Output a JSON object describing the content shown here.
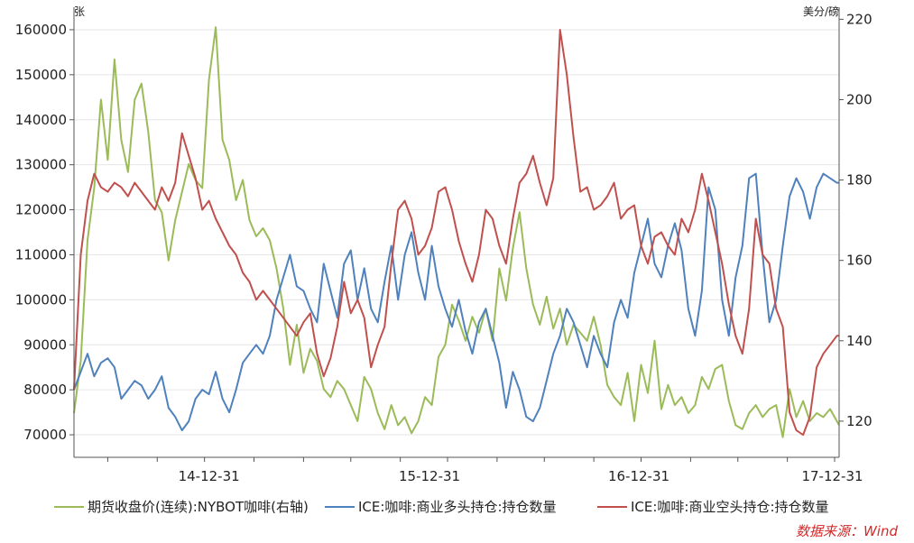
{
  "chart_data": {
    "type": "line",
    "left_unit": "张",
    "right_unit": "美分/磅",
    "left_axis": {
      "min": 65000,
      "max": 165000,
      "ticks": [
        70000,
        80000,
        90000,
        100000,
        110000,
        120000,
        130000,
        140000,
        150000,
        160000
      ]
    },
    "right_axis": {
      "min": 111,
      "max": 223,
      "ticks": [
        120,
        140,
        160,
        180,
        200,
        220
      ]
    },
    "x_axis": {
      "min": 0,
      "max": 34,
      "tick_labels": [
        "14-12-31",
        "15-12-31",
        "16-12-31",
        "17-12-31"
      ],
      "tick_positions": [
        6,
        15.8,
        25.1,
        33.7
      ],
      "minor_ticks": [
        1.5,
        3.7,
        5.8,
        8,
        10.2,
        12.3,
        14.5,
        16.6,
        18.8,
        20.9,
        23.1,
        25.2,
        27.4,
        29.5,
        31.7,
        33.8
      ]
    },
    "grid": true,
    "legend_position": "bottom",
    "series": [
      {
        "name": "期货收盘价(连续):NYBOT咖啡(右轴)",
        "color": "#9bbb59",
        "axis": "right",
        "x": [
          0,
          0.3,
          0.6,
          0.9,
          1.2,
          1.5,
          1.8,
          2.1,
          2.4,
          2.7,
          3,
          3.3,
          3.6,
          3.9,
          4.2,
          4.5,
          4.8,
          5.1,
          5.4,
          5.7,
          6,
          6.3,
          6.6,
          6.9,
          7.2,
          7.5,
          7.8,
          8.1,
          8.4,
          8.7,
          9,
          9.3,
          9.6,
          9.9,
          10.2,
          10.5,
          10.8,
          11.1,
          11.4,
          11.7,
          12,
          12.3,
          12.6,
          12.9,
          13.2,
          13.5,
          13.8,
          14.1,
          14.4,
          14.7,
          15,
          15.3,
          15.6,
          15.9,
          16.2,
          16.5,
          16.8,
          17.1,
          17.4,
          17.7,
          18,
          18.3,
          18.6,
          18.9,
          19.2,
          19.5,
          19.8,
          20.1,
          20.4,
          20.7,
          21,
          21.3,
          21.6,
          21.9,
          22.2,
          22.5,
          22.8,
          23.1,
          23.4,
          23.7,
          24,
          24.3,
          24.6,
          24.9,
          25.2,
          25.5,
          25.8,
          26.1,
          26.4,
          26.7,
          27,
          27.3,
          27.6,
          27.9,
          28.2,
          28.5,
          28.8,
          29.1,
          29.4,
          29.7,
          30,
          30.3,
          30.6,
          30.9,
          31.2,
          31.5,
          31.8,
          32.1,
          32.4,
          32.7,
          33,
          33.3,
          33.6,
          33.9,
          34
        ],
        "values": [
          122,
          135,
          165,
          178,
          200,
          185,
          210,
          190,
          182,
          200,
          204,
          192,
          175,
          172,
          160,
          170,
          177,
          184,
          180,
          178,
          205,
          218,
          190,
          185,
          175,
          180,
          170,
          166,
          168,
          165,
          158,
          148,
          134,
          144,
          132,
          138,
          135,
          128,
          126,
          130,
          128,
          124,
          120,
          131,
          128,
          122,
          118,
          124,
          119,
          121,
          117,
          120,
          126,
          124,
          136,
          139,
          149,
          145,
          140,
          146,
          142,
          148,
          140,
          158,
          150,
          163,
          172,
          158,
          149,
          144,
          151,
          143,
          148,
          139,
          144,
          142,
          140,
          146,
          139,
          129,
          126,
          124,
          132,
          120,
          134,
          127,
          140,
          123,
          129,
          124,
          126,
          122,
          124,
          131,
          128,
          133,
          134,
          125,
          119,
          118,
          122,
          124,
          121,
          123,
          124,
          116,
          128,
          121,
          125,
          120,
          122,
          121,
          123,
          120,
          119
        ]
      },
      {
        "name": "ICE:咖啡:商业多头持仓:持仓数量",
        "color": "#4f81bd",
        "axis": "left",
        "x": [
          0,
          0.3,
          0.6,
          0.9,
          1.2,
          1.5,
          1.8,
          2.1,
          2.4,
          2.7,
          3,
          3.3,
          3.6,
          3.9,
          4.2,
          4.5,
          4.8,
          5.1,
          5.4,
          5.7,
          6,
          6.3,
          6.6,
          6.9,
          7.2,
          7.5,
          7.8,
          8.1,
          8.4,
          8.7,
          9,
          9.3,
          9.6,
          9.9,
          10.2,
          10.5,
          10.8,
          11.1,
          11.4,
          11.7,
          12,
          12.3,
          12.6,
          12.9,
          13.2,
          13.5,
          13.8,
          14.1,
          14.4,
          14.7,
          15,
          15.3,
          15.6,
          15.9,
          16.2,
          16.5,
          16.8,
          17.1,
          17.4,
          17.7,
          18,
          18.3,
          18.6,
          18.9,
          19.2,
          19.5,
          19.8,
          20.1,
          20.4,
          20.7,
          21,
          21.3,
          21.6,
          21.9,
          22.2,
          22.5,
          22.8,
          23.1,
          23.4,
          23.7,
          24,
          24.3,
          24.6,
          24.9,
          25.2,
          25.5,
          25.8,
          26.1,
          26.4,
          26.7,
          27,
          27.3,
          27.6,
          27.9,
          28.2,
          28.5,
          28.8,
          29.1,
          29.4,
          29.7,
          30,
          30.3,
          30.6,
          30.9,
          31.2,
          31.5,
          31.8,
          32.1,
          32.4,
          32.7,
          33,
          33.3,
          33.6,
          33.9,
          34
        ],
        "values": [
          80000,
          84000,
          88000,
          83000,
          86000,
          87000,
          85000,
          78000,
          80000,
          82000,
          81000,
          78000,
          80000,
          83000,
          76000,
          74000,
          71000,
          73000,
          78000,
          80000,
          79000,
          84000,
          78000,
          75000,
          80000,
          86000,
          88000,
          90000,
          88000,
          92000,
          100000,
          105000,
          110000,
          103000,
          102000,
          98000,
          95000,
          108000,
          102000,
          96000,
          108000,
          111000,
          100000,
          107000,
          98000,
          95000,
          104000,
          112000,
          100000,
          110000,
          115000,
          106000,
          100000,
          112000,
          103000,
          98000,
          94000,
          100000,
          93000,
          88000,
          95000,
          98000,
          92000,
          86000,
          76000,
          84000,
          80000,
          74000,
          73000,
          76000,
          82000,
          88000,
          92000,
          98000,
          95000,
          90000,
          85000,
          92000,
          88000,
          85000,
          95000,
          100000,
          96000,
          106000,
          112000,
          118000,
          108000,
          105000,
          112000,
          117000,
          111000,
          98000,
          92000,
          102000,
          125000,
          120000,
          100000,
          92000,
          105000,
          112000,
          127000,
          128000,
          110000,
          95000,
          100000,
          112000,
          123000,
          127000,
          124000,
          118000,
          125000,
          128000,
          127000,
          126000,
          126000
        ]
      },
      {
        "name": "ICE:咖啡:商业空头持仓:持仓数量",
        "color": "#c0504d",
        "axis": "left",
        "x": [
          0,
          0.3,
          0.6,
          0.9,
          1.2,
          1.5,
          1.8,
          2.1,
          2.4,
          2.7,
          3,
          3.3,
          3.6,
          3.9,
          4.2,
          4.5,
          4.8,
          5.1,
          5.4,
          5.7,
          6,
          6.3,
          6.6,
          6.9,
          7.2,
          7.5,
          7.8,
          8.1,
          8.4,
          8.7,
          9,
          9.3,
          9.6,
          9.9,
          10.2,
          10.5,
          10.8,
          11.1,
          11.4,
          11.7,
          12,
          12.3,
          12.6,
          12.9,
          13.2,
          13.5,
          13.8,
          14.1,
          14.4,
          14.7,
          15,
          15.3,
          15.6,
          15.9,
          16.2,
          16.5,
          16.8,
          17.1,
          17.4,
          17.7,
          18,
          18.3,
          18.6,
          18.9,
          19.2,
          19.5,
          19.8,
          20.1,
          20.4,
          20.7,
          21,
          21.3,
          21.6,
          21.9,
          22.2,
          22.5,
          22.8,
          23.1,
          23.4,
          23.7,
          24,
          24.3,
          24.6,
          24.9,
          25.2,
          25.5,
          25.8,
          26.1,
          26.4,
          26.7,
          27,
          27.3,
          27.6,
          27.9,
          28.2,
          28.5,
          28.8,
          29.1,
          29.4,
          29.7,
          30,
          30.3,
          30.6,
          30.9,
          31.2,
          31.5,
          31.8,
          32.1,
          32.4,
          32.7,
          33,
          33.3,
          33.6,
          33.9,
          34
        ],
        "values": [
          80000,
          110000,
          122000,
          128000,
          125000,
          124000,
          126000,
          125000,
          123000,
          126000,
          124000,
          122000,
          120000,
          125000,
          122000,
          126000,
          137000,
          132000,
          127000,
          120000,
          122000,
          118000,
          115000,
          112000,
          110000,
          106000,
          104000,
          100000,
          102000,
          100000,
          98000,
          96000,
          94000,
          92000,
          95000,
          97000,
          88000,
          83000,
          87000,
          94000,
          104000,
          97000,
          100000,
          96000,
          85000,
          90000,
          94000,
          108000,
          120000,
          122000,
          118000,
          110000,
          112000,
          116000,
          124000,
          125000,
          120000,
          113000,
          108000,
          104000,
          110000,
          120000,
          118000,
          112000,
          108000,
          118000,
          126000,
          128000,
          132000,
          126000,
          121000,
          127000,
          160000,
          150000,
          136000,
          124000,
          125000,
          120000,
          121000,
          123000,
          126000,
          118000,
          120000,
          121000,
          112000,
          108000,
          114000,
          115000,
          112000,
          110000,
          118000,
          115000,
          120000,
          128000,
          122000,
          115000,
          108000,
          99000,
          92000,
          88000,
          98000,
          118000,
          110000,
          108000,
          98000,
          94000,
          75000,
          71000,
          70000,
          74000,
          85000,
          88000,
          90000,
          92000,
          92000
        ]
      }
    ]
  },
  "source_text": "数据来源：Wind"
}
